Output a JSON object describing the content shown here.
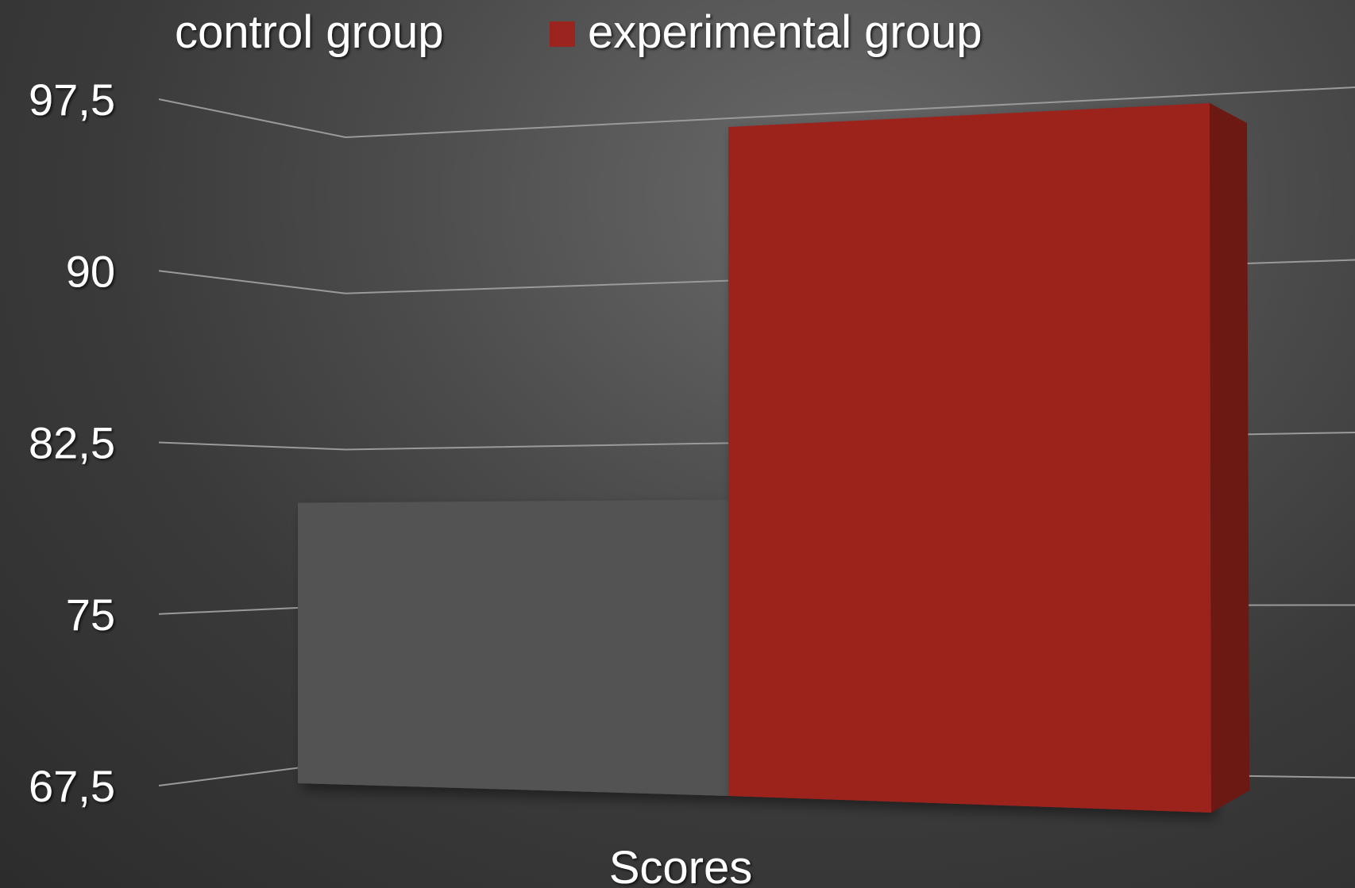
{
  "chart_data": {
    "type": "bar",
    "categories": [
      "Scores"
    ],
    "series": [
      {
        "name": "control group",
        "values": [
          80
        ],
        "color": "#525252"
      },
      {
        "name": "experimental group",
        "values": [
          97.5
        ],
        "color": "#9c241e"
      }
    ],
    "yticks": [
      "67,5",
      "75",
      "82,5",
      "90",
      "97,5"
    ],
    "ylim": [
      67.5,
      97.5
    ],
    "xlabel": "Scores",
    "legend_position": "top",
    "grid": true,
    "style": "3d"
  }
}
